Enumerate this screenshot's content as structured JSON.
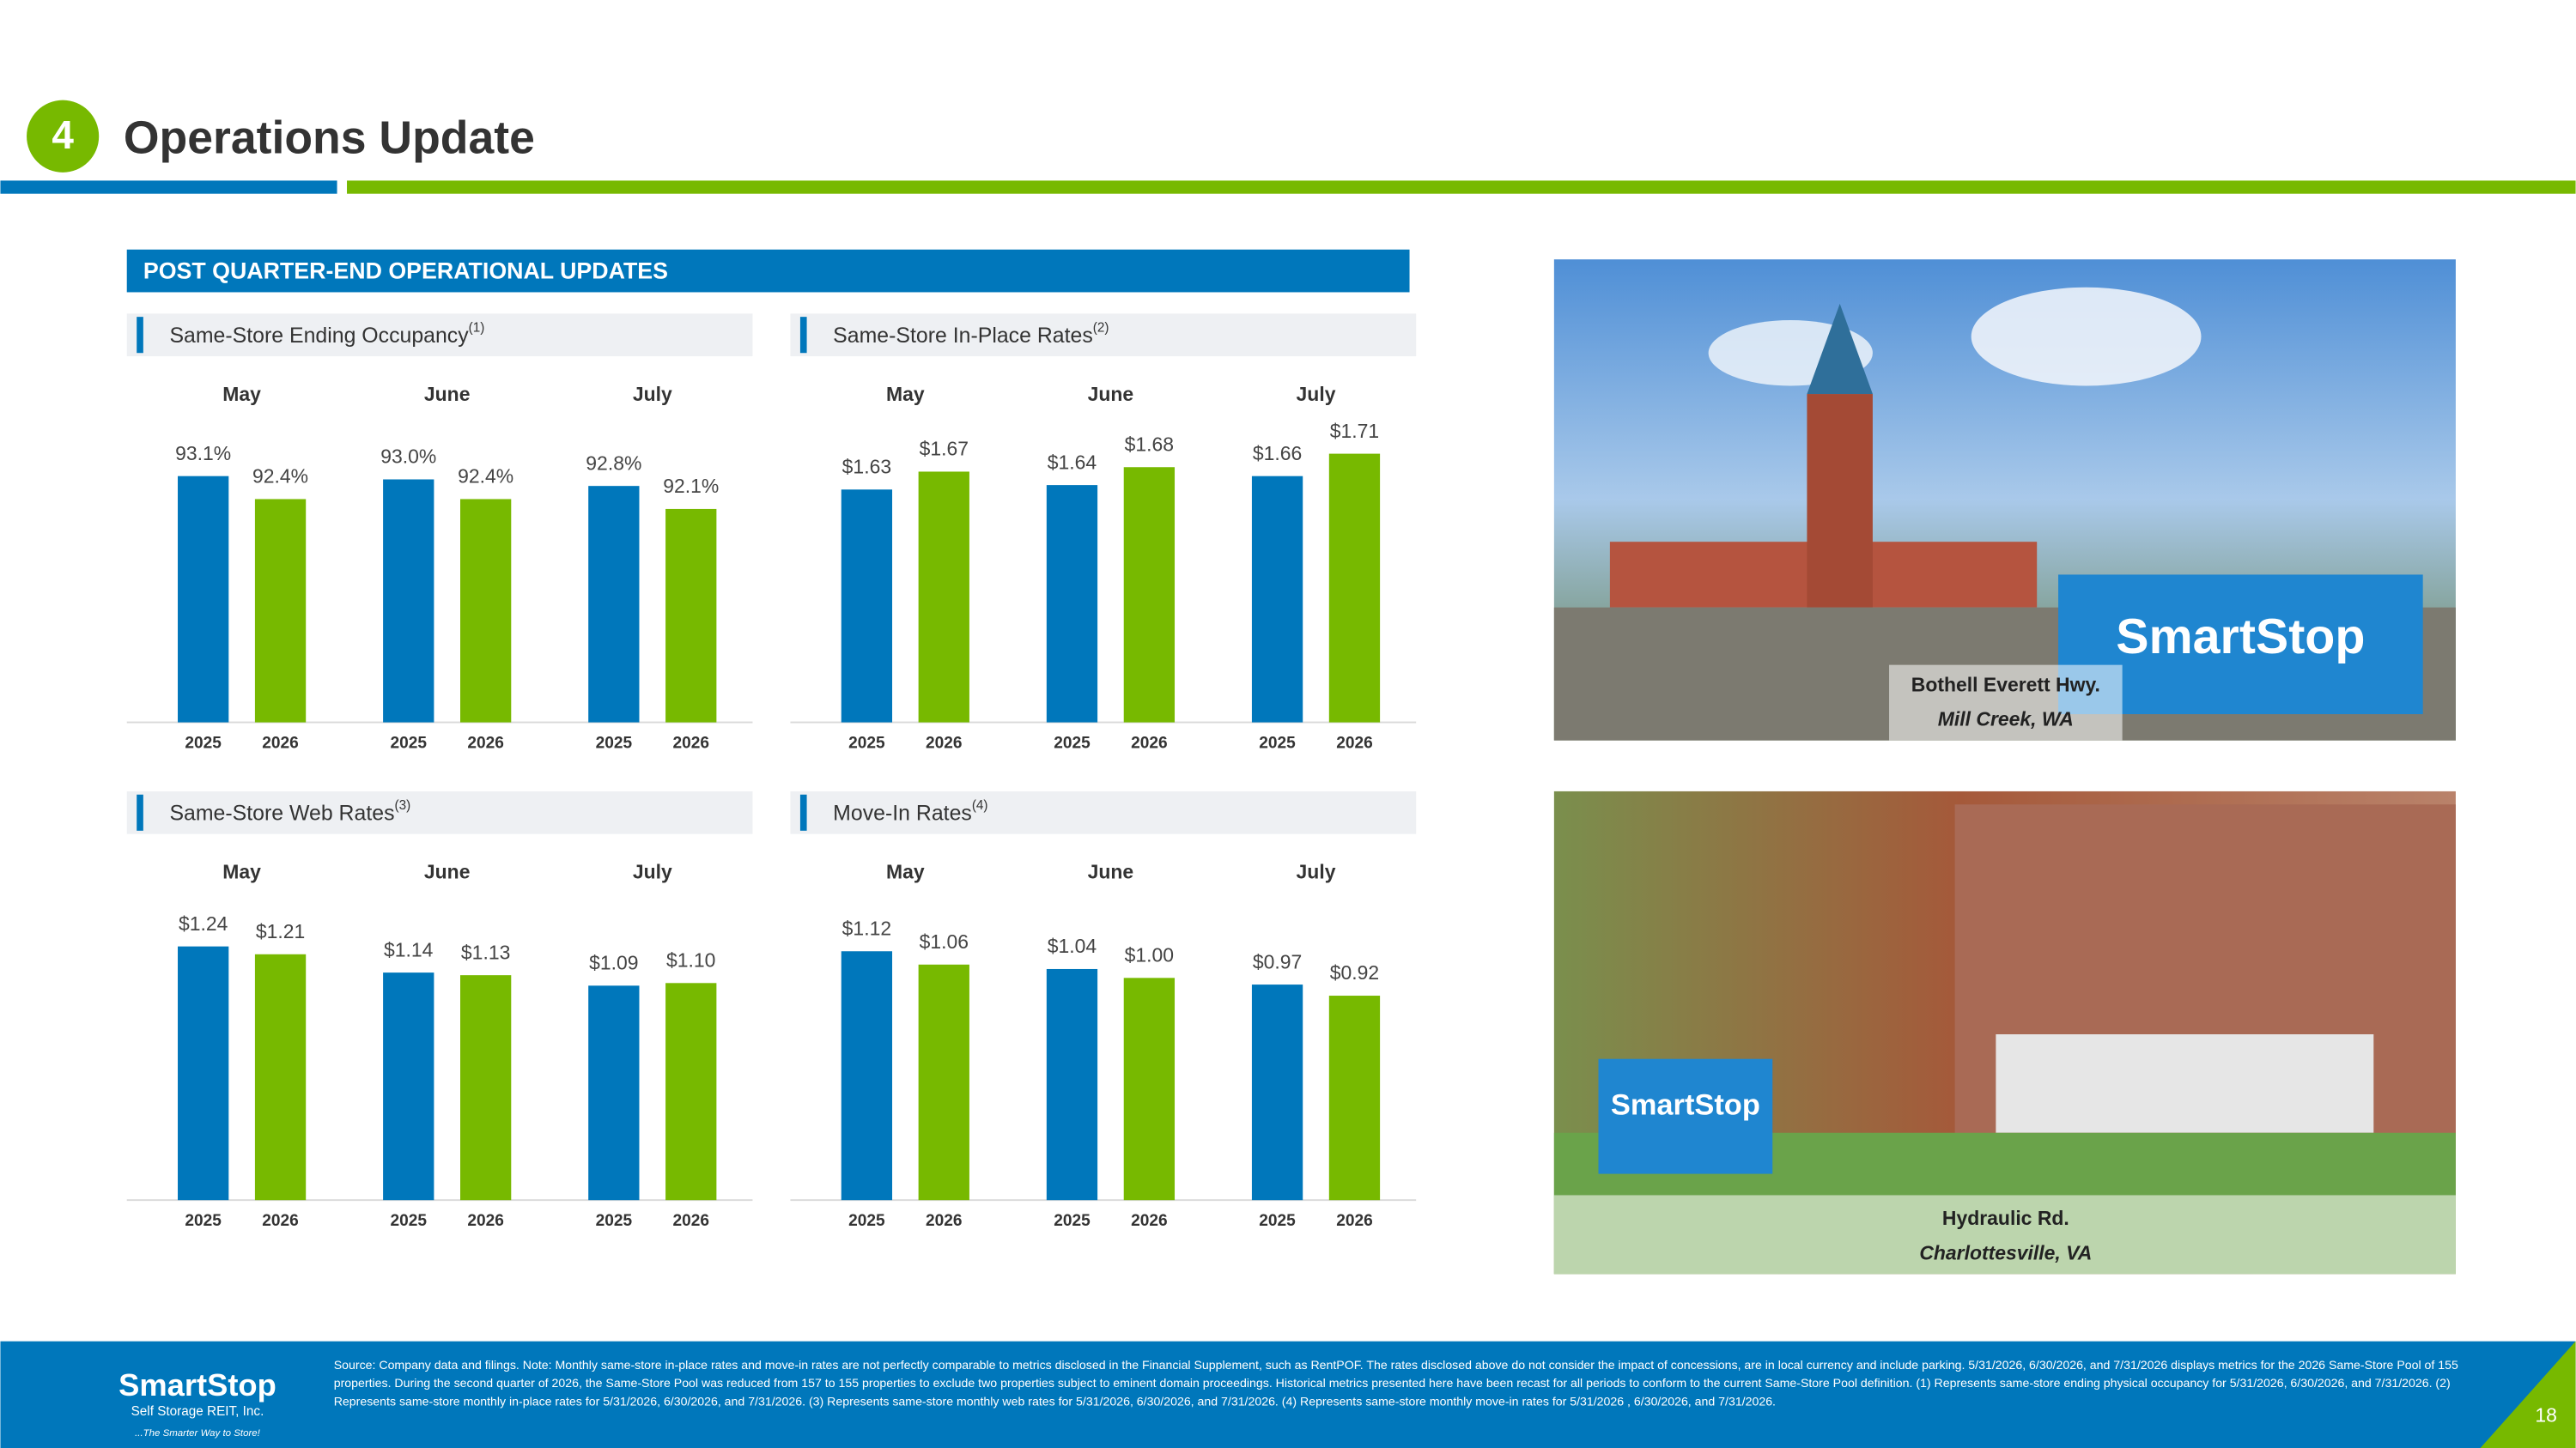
{
  "header": {
    "number": "4",
    "title": "Operations Update"
  },
  "section_title": "POST QUARTER-END OPERATIONAL UPDATES",
  "chart_data": [
    {
      "type": "bar",
      "title": "Same-Store Ending Occupancy",
      "title_note": "(1)",
      "categories": [
        "May",
        "June",
        "July"
      ],
      "ylim": [
        85.6,
        94.6
      ],
      "series": [
        {
          "name": "2025",
          "color": "#0077bb",
          "values": [
            93.1,
            93.0,
            92.8
          ],
          "value_labels": [
            "93.1%",
            "93.0%",
            "92.8%"
          ]
        },
        {
          "name": "2026",
          "color": "#77b900",
          "values": [
            92.4,
            92.4,
            92.1
          ],
          "value_labels": [
            "92.4%",
            "92.4%",
            "92.1%"
          ]
        }
      ]
    },
    {
      "type": "bar",
      "title": "Same-Store In-Place Rates",
      "title_note": "(2)",
      "categories": [
        "May",
        "June",
        "July"
      ],
      "ylim": [
        1.11,
        1.77
      ],
      "series": [
        {
          "name": "2025",
          "color": "#0077bb",
          "values": [
            1.63,
            1.64,
            1.66
          ],
          "value_labels": [
            "$1.63",
            "$1.64",
            "$1.66"
          ]
        },
        {
          "name": "2026",
          "color": "#77b900",
          "values": [
            1.67,
            1.68,
            1.71
          ],
          "value_labels": [
            "$1.67",
            "$1.68",
            "$1.71"
          ]
        }
      ]
    },
    {
      "type": "bar",
      "title": "Same-Store Web Rates",
      "title_note": "(3)",
      "categories": [
        "May",
        "June",
        "July"
      ],
      "ylim": [
        0.27,
        1.4
      ],
      "series": [
        {
          "name": "2025",
          "color": "#0077bb",
          "values": [
            1.24,
            1.14,
            1.09
          ],
          "value_labels": [
            "$1.24",
            "$1.14",
            "$1.09"
          ]
        },
        {
          "name": "2026",
          "color": "#77b900",
          "values": [
            1.21,
            1.13,
            1.1
          ],
          "value_labels": [
            "$1.21",
            "$1.13",
            "$1.10"
          ]
        }
      ]
    },
    {
      "type": "bar",
      "title": "Move-In Rates",
      "title_note": "(4)",
      "categories": [
        "May",
        "June",
        "July"
      ],
      "ylim": [
        0,
        1.33
      ],
      "series": [
        {
          "name": "2025",
          "color": "#0077bb",
          "values": [
            1.12,
            1.04,
            0.97
          ],
          "value_labels": [
            "$1.12",
            "$1.04",
            "$0.97"
          ]
        },
        {
          "name": "2026",
          "color": "#77b900",
          "values": [
            1.06,
            1.0,
            0.92
          ],
          "value_labels": [
            "$1.06",
            "$1.00",
            "$0.92"
          ]
        }
      ]
    }
  ],
  "photos": [
    {
      "name": "Bothell Everett Hwy.",
      "location": "Mill Creek, WA"
    },
    {
      "name": "Hydraulic Rd.",
      "location": "Charlottesville, VA"
    }
  ],
  "footer": {
    "logo": "SmartStop",
    "logo_sub": "Self Storage REIT, Inc.",
    "tagline": "...The Smarter Way to Store!",
    "note": "Source: Company data and filings. Note: Monthly same-store in-place rates and move-in rates are not perfectly comparable to metrics disclosed in the Financial Supplement, such as RentPOF. The rates disclosed above do not consider the impact of concessions, are in local currency and include parking.  5/31/2026, 6/30/2026, and 7/31/2026 displays metrics for the 2026 Same-Store Pool of 155 properties. During the second quarter of 2026, the Same-Store Pool was reduced from 157 to 155 properties to exclude two properties subject to eminent domain proceedings. Historical metrics presented here have been recast for all periods to conform to the current Same-Store Pool definition. (1) Represents same-store ending physical occupancy for 5/31/2026, 6/30/2026, and 7/31/2026. (2) Represents same-store monthly in-place rates for 5/31/2026, 6/30/2026, and 7/31/2026. (3) Represents same-store monthly web rates for 5/31/2026, 6/30/2026, and 7/31/2026. (4) Represents same-store monthly move-in rates for 5/31/2026 , 6/30/2026, and 7/31/2026.",
    "page": "18"
  }
}
